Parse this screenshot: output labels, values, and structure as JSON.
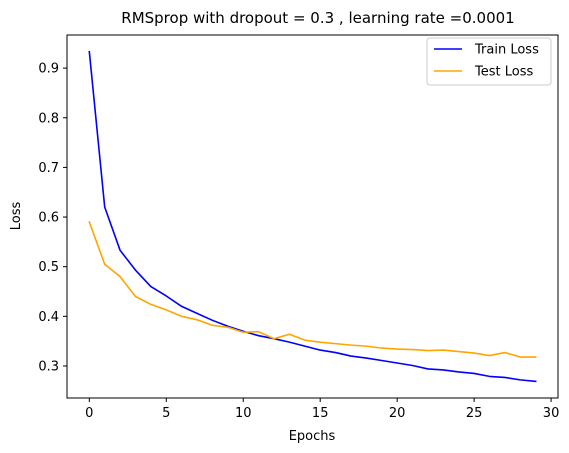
{
  "chart_data": {
    "type": "line",
    "title": "RMSprop with dropout = 0.3 , learning rate =0.0001",
    "xlabel": "Epochs",
    "ylabel": "Loss",
    "xlim": [
      -1.45,
      30.45
    ],
    "ylim": [
      0.2355,
      0.9667
    ],
    "xticks": [
      0,
      5,
      10,
      15,
      20,
      25,
      30
    ],
    "yticks": [
      0.3,
      0.4,
      0.5,
      0.6,
      0.7,
      0.8,
      0.9
    ],
    "grid": false,
    "legend_position": "top-right",
    "x": [
      0,
      1,
      2,
      3,
      4,
      5,
      6,
      7,
      8,
      9,
      10,
      11,
      12,
      13,
      14,
      15,
      16,
      17,
      18,
      19,
      20,
      21,
      22,
      23,
      24,
      25,
      26,
      27,
      28,
      29
    ],
    "series": [
      {
        "name": "Train Loss",
        "color": "#0000ff",
        "values": [
          0.933,
          0.62,
          0.533,
          0.493,
          0.46,
          0.441,
          0.42,
          0.406,
          0.392,
          0.38,
          0.37,
          0.361,
          0.355,
          0.348,
          0.34,
          0.332,
          0.327,
          0.32,
          0.316,
          0.311,
          0.306,
          0.301,
          0.294,
          0.292,
          0.288,
          0.285,
          0.279,
          0.277,
          0.272,
          0.269
        ]
      },
      {
        "name": "Test Loss",
        "color": "#ffa500",
        "values": [
          0.59,
          0.505,
          0.48,
          0.44,
          0.424,
          0.413,
          0.4,
          0.393,
          0.382,
          0.378,
          0.368,
          0.369,
          0.355,
          0.364,
          0.352,
          0.348,
          0.345,
          0.342,
          0.34,
          0.336,
          0.334,
          0.333,
          0.331,
          0.332,
          0.329,
          0.326,
          0.321,
          0.327,
          0.318,
          0.318
        ]
      }
    ]
  }
}
